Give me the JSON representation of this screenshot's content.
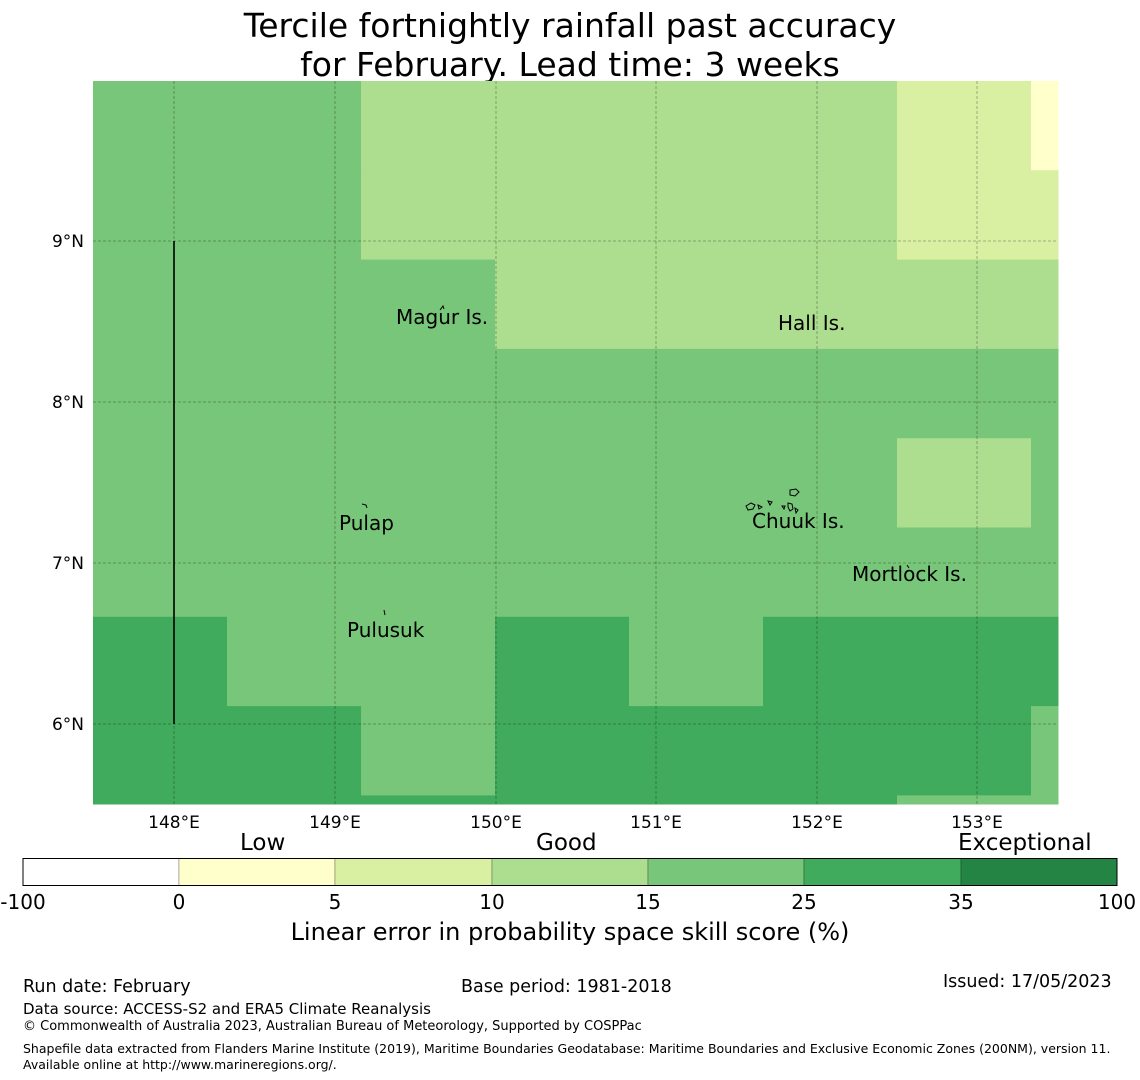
{
  "title": {
    "line1": "Tercile fortnightly rainfall past accuracy",
    "line2": "for February. Lead time: 3 weeks"
  },
  "map": {
    "x_ticks": [
      "148°E",
      "149°E",
      "150°E",
      "151°E",
      "152°E",
      "153°E"
    ],
    "y_ticks": [
      "9°N",
      "8°N",
      "7°N",
      "6°N"
    ],
    "islands": [
      "Magur Is.",
      "Hall Is.",
      "Pulap",
      "Chuuk Is.",
      "Mortlock Is.",
      "Pulusuk"
    ],
    "grid_lon_start": 147.5,
    "grid_lat_top": 10.0,
    "cell_degrees": 0.833,
    "grid_values": [
      [
        20,
        20,
        10,
        10,
        10,
        10,
        5,
        0
      ],
      [
        20,
        20,
        10,
        10,
        10,
        10,
        5,
        5
      ],
      [
        20,
        20,
        20,
        10,
        10,
        10,
        10,
        10
      ],
      [
        20,
        20,
        20,
        20,
        20,
        20,
        20,
        20
      ],
      [
        20,
        20,
        20,
        20,
        20,
        20,
        10,
        20
      ],
      [
        20,
        20,
        20,
        20,
        20,
        20,
        20,
        20
      ],
      [
        30,
        20,
        20,
        30,
        20,
        30,
        30,
        30
      ],
      [
        30,
        30,
        20,
        30,
        30,
        30,
        30,
        20
      ],
      [
        30,
        30,
        30,
        30,
        30,
        30,
        20,
        20
      ]
    ]
  },
  "colorbar": {
    "categories": [
      "Low",
      "Good",
      "Exceptional"
    ],
    "ticks": [
      "-100",
      "0",
      "5",
      "10",
      "15",
      "25",
      "35",
      "100"
    ],
    "colors": [
      "#ffffff",
      "#ffffcc",
      "#d9f0a3",
      "#addd8e",
      "#78c679",
      "#41ab5d",
      "#238443"
    ],
    "label": "Linear error in probability space skill score (%)"
  },
  "footer": {
    "run_date": "Run date: February",
    "base_period": "Base period: 1981-2018",
    "issued": "Issued: 17/05/2023",
    "data_source": "Data source: ACCESS-S2 and ERA5 Climate Reanalysis",
    "copyright": "© Commonwealth of Australia 2023, Australian Bureau of Meteorology, Supported by COSPPac",
    "shapefile": "Shapefile data extracted from Flanders Marine Institute (2019), Maritime Boundaries Geodatabase: Maritime Boundaries and Exclusive Economic Zones (200NM), version 11. Available online at http://www.marineregions.org/."
  }
}
